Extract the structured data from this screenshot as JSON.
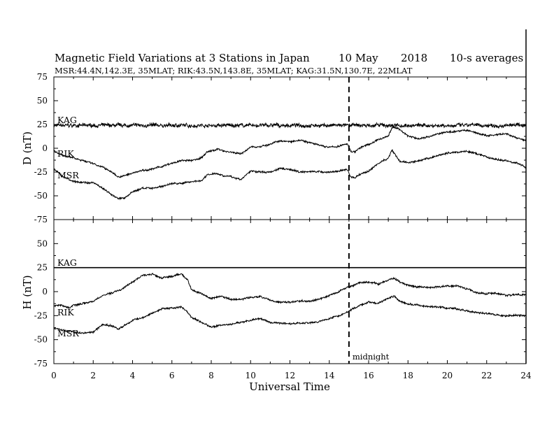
{
  "header": {
    "title": "Magnetic Field Variations at 3 Stations in Japan",
    "date": "10 May",
    "year": "2018",
    "averaging": "10-s averages",
    "stations_line": "MSR:44.4N,142.3E, 35MLAT;  RIK:43.5N,143.8E, 35MLAT;  KAG:31.5N,130.7E, 22MLAT"
  },
  "colors": {
    "ink": "#000000",
    "background": "#ffffff"
  },
  "chart_data": [
    {
      "type": "line",
      "panel": "top",
      "ylabel": "D (nT)",
      "xlabel": "Universal Time",
      "xlim": [
        0,
        24
      ],
      "ylim": [
        -75,
        75
      ],
      "x_ticks": [
        "0",
        "2",
        "4",
        "6",
        "8",
        "10",
        "12",
        "14",
        "16",
        "18",
        "20",
        "22",
        "24"
      ],
      "y_ticks": [
        "75",
        "50",
        "25",
        "0",
        "-25",
        "-50",
        "-75"
      ],
      "grid": false,
      "midnight_marker_ut": 15,
      "series": [
        {
          "name": "KAG",
          "noise": 1.6,
          "points": [
            [
              0,
              24
            ],
            [
              24,
              24
            ]
          ]
        },
        {
          "name": "RIK",
          "noise": 0.8,
          "points": [
            [
              0,
              -3
            ],
            [
              0.5,
              -8
            ],
            [
              1,
              -10
            ],
            [
              1.5,
              -13
            ],
            [
              2,
              -16
            ],
            [
              2.5,
              -20
            ],
            [
              3,
              -26
            ],
            [
              3.3,
              -30
            ],
            [
              3.6,
              -29
            ],
            [
              4,
              -26
            ],
            [
              4.5,
              -23
            ],
            [
              5,
              -22
            ],
            [
              5.5,
              -19
            ],
            [
              6,
              -16
            ],
            [
              6.5,
              -13
            ],
            [
              7,
              -13
            ],
            [
              7.5,
              -10
            ],
            [
              7.8,
              -4
            ],
            [
              8.3,
              -1
            ],
            [
              8.7,
              -3
            ],
            [
              9,
              -4
            ],
            [
              9.5,
              -6
            ],
            [
              10,
              1
            ],
            [
              10.5,
              2
            ],
            [
              11,
              4
            ],
            [
              11.5,
              8
            ],
            [
              12,
              7
            ],
            [
              12.5,
              9
            ],
            [
              13,
              6
            ],
            [
              13.5,
              3
            ],
            [
              14,
              1
            ],
            [
              14.5,
              2
            ],
            [
              14.9,
              5
            ],
            [
              15.1,
              -3
            ],
            [
              15.3,
              -4
            ],
            [
              15.6,
              1
            ],
            [
              16,
              4
            ],
            [
              16.5,
              9
            ],
            [
              17,
              13
            ],
            [
              17.2,
              22
            ],
            [
              17.5,
              21
            ],
            [
              18,
              13
            ],
            [
              18.5,
              10
            ],
            [
              19,
              12
            ],
            [
              19.5,
              15
            ],
            [
              20,
              17
            ],
            [
              20.5,
              18
            ],
            [
              21,
              19
            ],
            [
              21.5,
              16
            ],
            [
              22,
              13
            ],
            [
              22.5,
              14
            ],
            [
              23,
              15
            ],
            [
              23.5,
              11
            ],
            [
              24,
              8
            ]
          ]
        },
        {
          "name": "MSR",
          "noise": 0.8,
          "points": [
            [
              0,
              -22
            ],
            [
              0.5,
              -30
            ],
            [
              1,
              -35
            ],
            [
              1.5,
              -36
            ],
            [
              2,
              -36
            ],
            [
              2.5,
              -42
            ],
            [
              3,
              -50
            ],
            [
              3.3,
              -53
            ],
            [
              3.6,
              -52
            ],
            [
              4,
              -46
            ],
            [
              4.5,
              -42
            ],
            [
              5,
              -42
            ],
            [
              5.5,
              -40
            ],
            [
              6,
              -37
            ],
            [
              6.5,
              -37
            ],
            [
              7,
              -35
            ],
            [
              7.5,
              -34
            ],
            [
              7.8,
              -28
            ],
            [
              8.2,
              -26
            ],
            [
              8.7,
              -29
            ],
            [
              9,
              -30
            ],
            [
              9.5,
              -33
            ],
            [
              10,
              -24
            ],
            [
              10.5,
              -25
            ],
            [
              11,
              -25
            ],
            [
              11.5,
              -21
            ],
            [
              12,
              -22
            ],
            [
              12.5,
              -25
            ],
            [
              13,
              -24
            ],
            [
              13.5,
              -25
            ],
            [
              14,
              -25
            ],
            [
              14.5,
              -24
            ],
            [
              14.9,
              -22
            ],
            [
              15.1,
              -30
            ],
            [
              15.3,
              -31
            ],
            [
              15.6,
              -27
            ],
            [
              16,
              -24
            ],
            [
              16.5,
              -16
            ],
            [
              17,
              -10
            ],
            [
              17.2,
              -2
            ],
            [
              17.4,
              -8
            ],
            [
              17.6,
              -14
            ],
            [
              18,
              -15
            ],
            [
              18.5,
              -14
            ],
            [
              19,
              -11
            ],
            [
              19.5,
              -8
            ],
            [
              20,
              -5
            ],
            [
              20.5,
              -4
            ],
            [
              21,
              -3
            ],
            [
              21.5,
              -6
            ],
            [
              22,
              -9
            ],
            [
              22.5,
              -12
            ],
            [
              23,
              -13
            ],
            [
              23.5,
              -15
            ],
            [
              24,
              -20
            ]
          ]
        }
      ]
    },
    {
      "type": "line",
      "panel": "bottom",
      "ylabel": "H (nT)",
      "xlabel": "Universal Time",
      "xlim": [
        0,
        24
      ],
      "ylim": [
        -75,
        75
      ],
      "x_ticks": [
        "0",
        "2",
        "4",
        "6",
        "8",
        "10",
        "12",
        "14",
        "16",
        "18",
        "20",
        "22",
        "24"
      ],
      "y_ticks": [
        "75",
        "50",
        "25",
        "0",
        "-25",
        "-50",
        "-75"
      ],
      "grid": false,
      "midnight_marker_ut": 15,
      "midnight_label": "midnight",
      "series": [
        {
          "name": "KAG",
          "noise": 0,
          "points": [
            [
              0,
              25
            ],
            [
              24,
              25
            ]
          ]
        },
        {
          "name": "RIK",
          "noise": 0.8,
          "points": [
            [
              0,
              -15
            ],
            [
              0.4,
              -14
            ],
            [
              0.8,
              -17
            ],
            [
              1,
              -14
            ],
            [
              1.5,
              -12
            ],
            [
              2,
              -10
            ],
            [
              2.5,
              -4
            ],
            [
              3,
              -1
            ],
            [
              3.5,
              3
            ],
            [
              4,
              10
            ],
            [
              4.5,
              17
            ],
            [
              5,
              18
            ],
            [
              5.5,
              14
            ],
            [
              6,
              16
            ],
            [
              6.5,
              18
            ],
            [
              6.8,
              12
            ],
            [
              7,
              2
            ],
            [
              7.5,
              -2
            ],
            [
              8,
              -7
            ],
            [
              8.5,
              -5
            ],
            [
              9,
              -8
            ],
            [
              9.5,
              -8
            ],
            [
              10,
              -6
            ],
            [
              10.5,
              -5
            ],
            [
              11,
              -9
            ],
            [
              11.5,
              -11
            ],
            [
              12,
              -11
            ],
            [
              12.5,
              -10
            ],
            [
              13,
              -10
            ],
            [
              13.5,
              -8
            ],
            [
              14,
              -4
            ],
            [
              14.5,
              0
            ],
            [
              15,
              5
            ],
            [
              15.5,
              9
            ],
            [
              16,
              10
            ],
            [
              16.5,
              8
            ],
            [
              17,
              12
            ],
            [
              17.3,
              14
            ],
            [
              17.6,
              10
            ],
            [
              18,
              7
            ],
            [
              18.5,
              5
            ],
            [
              19,
              4
            ],
            [
              19.5,
              5
            ],
            [
              20,
              6
            ],
            [
              20.5,
              6
            ],
            [
              21,
              3
            ],
            [
              21.5,
              -1
            ],
            [
              22,
              -2
            ],
            [
              22.5,
              -2
            ],
            [
              23,
              -4
            ],
            [
              23.5,
              -3
            ],
            [
              24,
              -3
            ]
          ]
        },
        {
          "name": "MSR",
          "noise": 0.8,
          "points": [
            [
              0,
              -38
            ],
            [
              0.5,
              -40
            ],
            [
              1,
              -42
            ],
            [
              1.5,
              -43
            ],
            [
              2,
              -42
            ],
            [
              2.5,
              -34
            ],
            [
              3,
              -36
            ],
            [
              3.3,
              -39
            ],
            [
              3.6,
              -35
            ],
            [
              4,
              -30
            ],
            [
              4.5,
              -27
            ],
            [
              5,
              -22
            ],
            [
              5.5,
              -18
            ],
            [
              6,
              -17
            ],
            [
              6.5,
              -16
            ],
            [
              6.8,
              -22
            ],
            [
              7,
              -27
            ],
            [
              7.5,
              -32
            ],
            [
              8,
              -37
            ],
            [
              8.5,
              -35
            ],
            [
              9,
              -34
            ],
            [
              9.5,
              -32
            ],
            [
              10,
              -30
            ],
            [
              10.5,
              -28
            ],
            [
              11,
              -32
            ],
            [
              11.5,
              -33
            ],
            [
              12,
              -33
            ],
            [
              12.5,
              -33
            ],
            [
              13,
              -32
            ],
            [
              13.5,
              -31
            ],
            [
              14,
              -28
            ],
            [
              14.5,
              -25
            ],
            [
              15,
              -20
            ],
            [
              15.5,
              -15
            ],
            [
              16,
              -11
            ],
            [
              16.5,
              -12
            ],
            [
              17,
              -7
            ],
            [
              17.3,
              -5
            ],
            [
              17.6,
              -10
            ],
            [
              18,
              -13
            ],
            [
              18.5,
              -14
            ],
            [
              19,
              -16
            ],
            [
              19.5,
              -16
            ],
            [
              20,
              -17
            ],
            [
              20.5,
              -18
            ],
            [
              21,
              -20
            ],
            [
              21.5,
              -22
            ],
            [
              22,
              -23
            ],
            [
              22.5,
              -24
            ],
            [
              23,
              -25
            ],
            [
              23.5,
              -25
            ],
            [
              24,
              -25
            ]
          ]
        }
      ]
    }
  ]
}
